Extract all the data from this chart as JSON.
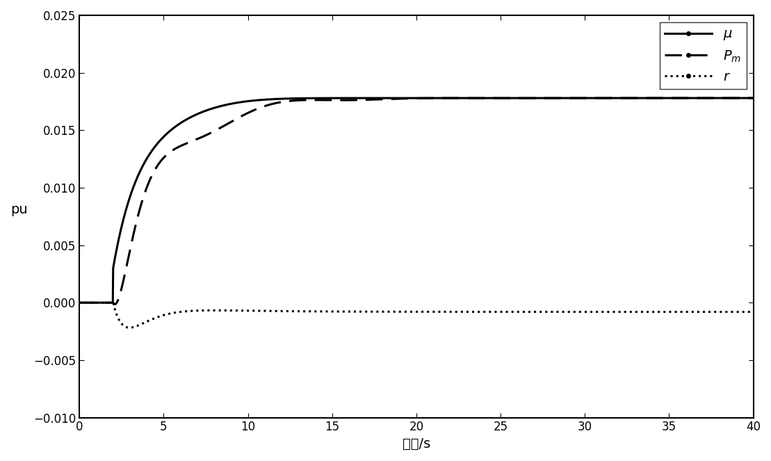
{
  "title": "",
  "xlabel": "时间/s",
  "ylabel": "pu",
  "xlim": [
    0,
    40
  ],
  "ylim": [
    -0.01,
    0.025
  ],
  "yticks": [
    -0.01,
    -0.005,
    0,
    0.005,
    0.01,
    0.015,
    0.02,
    0.025
  ],
  "xticks": [
    0,
    5,
    10,
    15,
    20,
    25,
    30,
    35,
    40
  ],
  "legend_labels": [
    "μ",
    "P_m",
    "r"
  ],
  "background_color": "#ffffff",
  "line_color": "#000000"
}
